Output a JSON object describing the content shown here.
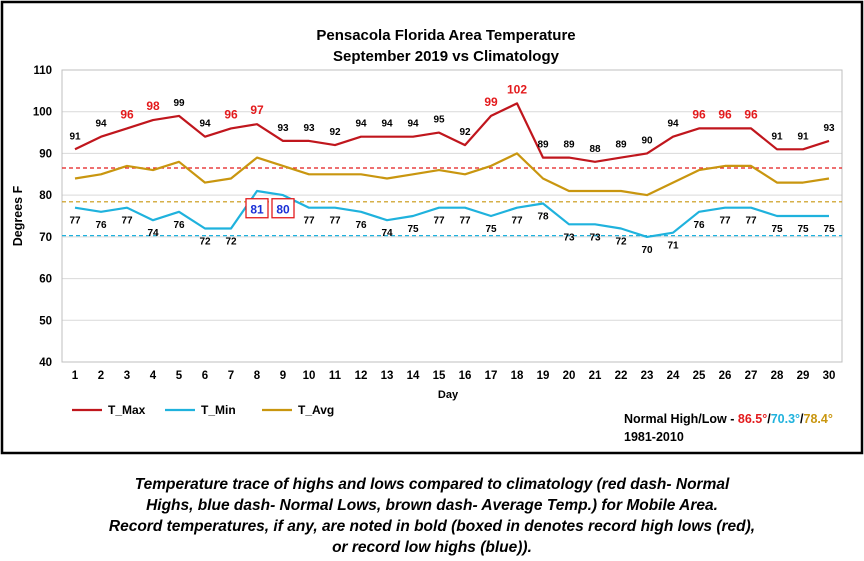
{
  "chart_data": {
    "type": "line",
    "title": "Pensacola Florida Area Temperature",
    "subtitle": "September 2019 vs Climatology",
    "xlabel": "Day",
    "ylabel": "Degrees F",
    "ylim": [
      40,
      110
    ],
    "yticks": [
      40,
      50,
      60,
      70,
      80,
      90,
      100,
      110
    ],
    "x": [
      1,
      2,
      3,
      4,
      5,
      6,
      7,
      8,
      9,
      10,
      11,
      12,
      13,
      14,
      15,
      16,
      17,
      18,
      19,
      20,
      21,
      22,
      23,
      24,
      25,
      26,
      27,
      28,
      29,
      30
    ],
    "grid": "horizontal",
    "legend": "bottom-left",
    "series": [
      {
        "name": "T_Max",
        "color": "#c0161d",
        "values": [
          91,
          94,
          96,
          98,
          99,
          94,
          96,
          97,
          93,
          93,
          92,
          94,
          94,
          94,
          95,
          92,
          99,
          102,
          89,
          89,
          88,
          89,
          90,
          94,
          96,
          96,
          96,
          91,
          91,
          93
        ],
        "labels": [
          "91",
          "94",
          "96",
          "98",
          "99",
          "94",
          "96",
          "97",
          "93",
          "93",
          "92",
          "94",
          "94",
          "94",
          "95",
          "92",
          "99",
          "102",
          "89",
          "89",
          "88",
          "89",
          "90",
          "94",
          "96",
          "96",
          "96",
          "91",
          "91",
          "93"
        ],
        "record_days": [
          3,
          4,
          7,
          8,
          17,
          18,
          25,
          26,
          27
        ]
      },
      {
        "name": "T_Min",
        "color": "#1fb2dd",
        "values": [
          77,
          76,
          77,
          74,
          76,
          72,
          72,
          81,
          80,
          77,
          77,
          76,
          74,
          75,
          77,
          77,
          75,
          77,
          78,
          73,
          73,
          72,
          70,
          71,
          76,
          77,
          77,
          75,
          75,
          75
        ],
        "labels": [
          "77",
          "76",
          "77",
          "74",
          "76",
          "72",
          "72",
          "81",
          "80",
          "77",
          "77",
          "76",
          "74",
          "75",
          "77",
          "77",
          "75",
          "77",
          "78",
          "73",
          "73",
          "72",
          "70",
          "71",
          "76",
          "77",
          "77",
          "75",
          "75",
          "75"
        ],
        "record_days": [
          8,
          9
        ]
      },
      {
        "name": "T_Avg",
        "color": "#c9960f",
        "values": [
          84,
          85,
          87,
          86,
          88,
          83,
          84,
          89,
          87,
          85,
          85,
          85,
          84,
          85,
          86,
          85,
          87,
          90,
          84,
          81,
          81,
          81,
          80,
          83,
          86,
          87,
          87,
          83,
          83,
          84
        ]
      }
    ],
    "normals": {
      "high": 86.5,
      "low": 70.3,
      "avg": 78.4
    },
    "colors": {
      "record_high": "#e31a1c",
      "record_low_box": "#e31a1c",
      "record_low_text": "#1a2fd6"
    }
  },
  "normals_note": {
    "prefix": "Normal High/Low - ",
    "high": "86.5°",
    "sep1": "/",
    "low": "70.3°",
    "sep2": "/",
    "avg": "78.4°",
    "period": "1981-2010"
  },
  "caption": [
    "Temperature trace of highs and lows compared to climatology (red dash- Normal",
    "Highs, blue dash- Normal Lows, brown dash- Average Temp.) for Mobile Area.",
    "Record temperatures, if any, are noted in bold (boxed in denotes record high lows (red),",
    "or record low highs (blue))."
  ]
}
